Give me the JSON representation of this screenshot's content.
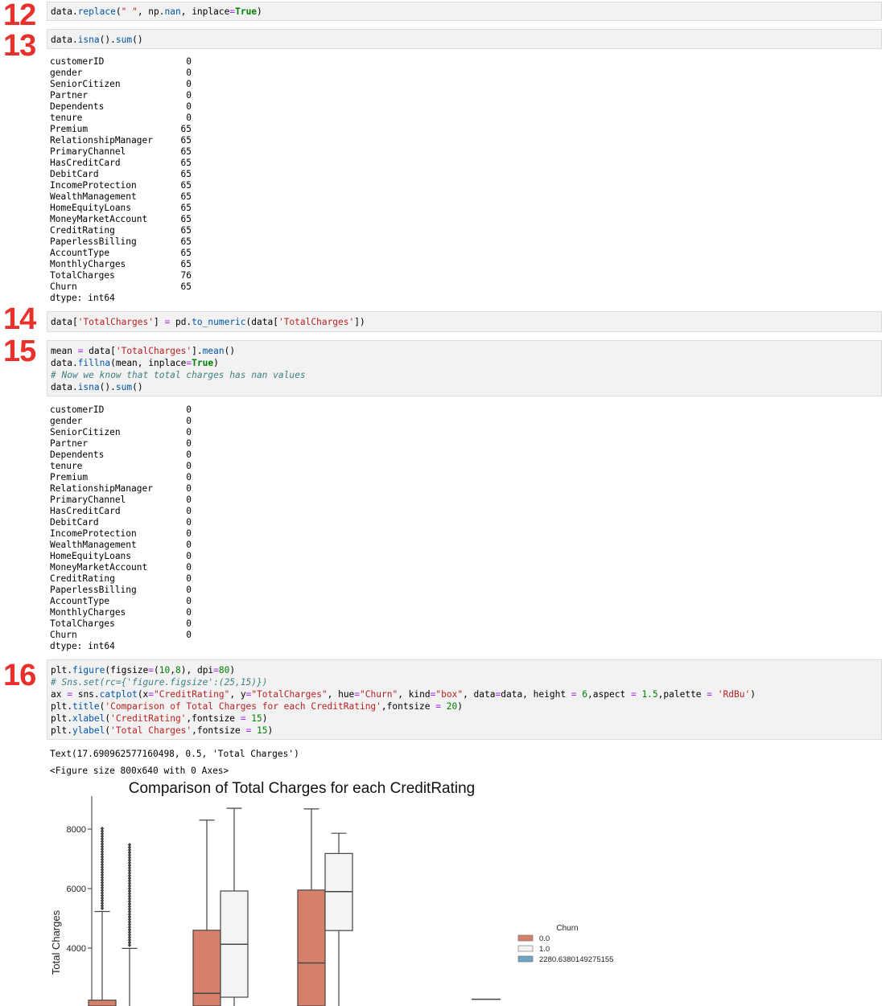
{
  "cells": {
    "c12": {
      "number": "12"
    },
    "c13": {
      "number": "13"
    },
    "c14": {
      "number": "14"
    },
    "c15": {
      "number": "15"
    },
    "c16": {
      "number": "16"
    }
  },
  "isna_output_1": {
    "rows": [
      [
        "customerID",
        "0"
      ],
      [
        "gender",
        "0"
      ],
      [
        "SeniorCitizen",
        "0"
      ],
      [
        "Partner",
        "0"
      ],
      [
        "Dependents",
        "0"
      ],
      [
        "tenure",
        "0"
      ],
      [
        "Premium",
        "65"
      ],
      [
        "RelationshipManager",
        "65"
      ],
      [
        "PrimaryChannel",
        "65"
      ],
      [
        "HasCreditCard",
        "65"
      ],
      [
        "DebitCard",
        "65"
      ],
      [
        "IncomeProtection",
        "65"
      ],
      [
        "WealthManagement",
        "65"
      ],
      [
        "HomeEquityLoans",
        "65"
      ],
      [
        "MoneyMarketAccount",
        "65"
      ],
      [
        "CreditRating",
        "65"
      ],
      [
        "PaperlessBilling",
        "65"
      ],
      [
        "AccountType",
        "65"
      ],
      [
        "MonthlyCharges",
        "65"
      ],
      [
        "TotalCharges",
        "76"
      ],
      [
        "Churn",
        "65"
      ]
    ],
    "dtype": "dtype: int64"
  },
  "isna_output_2": {
    "rows": [
      [
        "customerID",
        "0"
      ],
      [
        "gender",
        "0"
      ],
      [
        "SeniorCitizen",
        "0"
      ],
      [
        "Partner",
        "0"
      ],
      [
        "Dependents",
        "0"
      ],
      [
        "tenure",
        "0"
      ],
      [
        "Premium",
        "0"
      ],
      [
        "RelationshipManager",
        "0"
      ],
      [
        "PrimaryChannel",
        "0"
      ],
      [
        "HasCreditCard",
        "0"
      ],
      [
        "DebitCard",
        "0"
      ],
      [
        "IncomeProtection",
        "0"
      ],
      [
        "WealthManagement",
        "0"
      ],
      [
        "HomeEquityLoans",
        "0"
      ],
      [
        "MoneyMarketAccount",
        "0"
      ],
      [
        "CreditRating",
        "0"
      ],
      [
        "PaperlessBilling",
        "0"
      ],
      [
        "AccountType",
        "0"
      ],
      [
        "MonthlyCharges",
        "0"
      ],
      [
        "TotalCharges",
        "0"
      ],
      [
        "Churn",
        "0"
      ]
    ],
    "dtype": "dtype: int64"
  },
  "outputs16": {
    "text_result": "Text(17.690962577160498, 0.5, 'Total Charges')",
    "figure_repr": "<Figure size 800x640 with 0 Axes>"
  },
  "colors": {
    "churn0": "#d6806b",
    "churn1": "#f3f5f4",
    "churn2": "#6fa6c7"
  },
  "chart_data": {
    "type": "box",
    "title": "Comparison of Total Charges for each CreditRating",
    "xlabel": "",
    "ylabel": "Total Charges",
    "yticks": [
      2000,
      4000,
      6000,
      8000
    ],
    "ytick_labels": [
      "",
      "4000",
      "6000",
      "8000"
    ],
    "legend": {
      "title": "Churn",
      "entries": [
        "0.0",
        "1.0",
        "2280.6380149275155"
      ],
      "position": "right"
    },
    "boxes": [
      {
        "group": 0,
        "hue": "0.0",
        "q3": 2250,
        "whisker_high": 5230,
        "outliers_from": 5230,
        "outliers_to": 8050
      },
      {
        "group": 0,
        "hue": "1.0",
        "whisker_high": 3990,
        "outliers_from": 3990,
        "outliers_to": 7550
      },
      {
        "group": 1,
        "hue": "0.0",
        "median": 2480,
        "q3": 4600,
        "whisker_high": 8300
      },
      {
        "group": 1,
        "hue": "1.0",
        "q1": 2350,
        "median": 4130,
        "q3": 5920,
        "whisker_high": 8700
      },
      {
        "group": 2,
        "hue": "0.0",
        "median": 3500,
        "q3": 5950,
        "whisker_high": 8680
      },
      {
        "group": 2,
        "hue": "1.0",
        "q1": 4590,
        "median": 5900,
        "q3": 7180,
        "whisker_high": 7860
      },
      {
        "group": 3,
        "hue": "2280.6380149275155",
        "median": 2280
      }
    ]
  }
}
